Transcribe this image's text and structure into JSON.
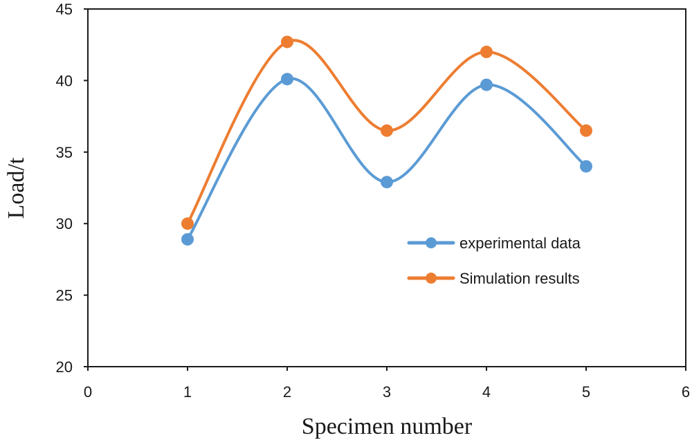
{
  "chart_data": {
    "type": "line",
    "smooth": true,
    "title": "",
    "xlabel": "Specimen number",
    "ylabel": "Load/t",
    "xlim": [
      0,
      6
    ],
    "ylim": [
      20,
      45
    ],
    "xticks": [
      0,
      1,
      2,
      3,
      4,
      5,
      6
    ],
    "yticks": [
      20,
      25,
      30,
      35,
      40,
      45
    ],
    "grid": false,
    "legend_position": "center-right",
    "x": [
      1,
      2,
      3,
      4,
      5
    ],
    "series": [
      {
        "name": "experimental data",
        "color": "#5b9bd5",
        "values": [
          28.9,
          40.1,
          32.9,
          39.7,
          34.0
        ]
      },
      {
        "name": "Simulation results",
        "color": "#ed7d31",
        "values": [
          30.0,
          42.7,
          36.5,
          42.0,
          36.5
        ]
      }
    ]
  }
}
